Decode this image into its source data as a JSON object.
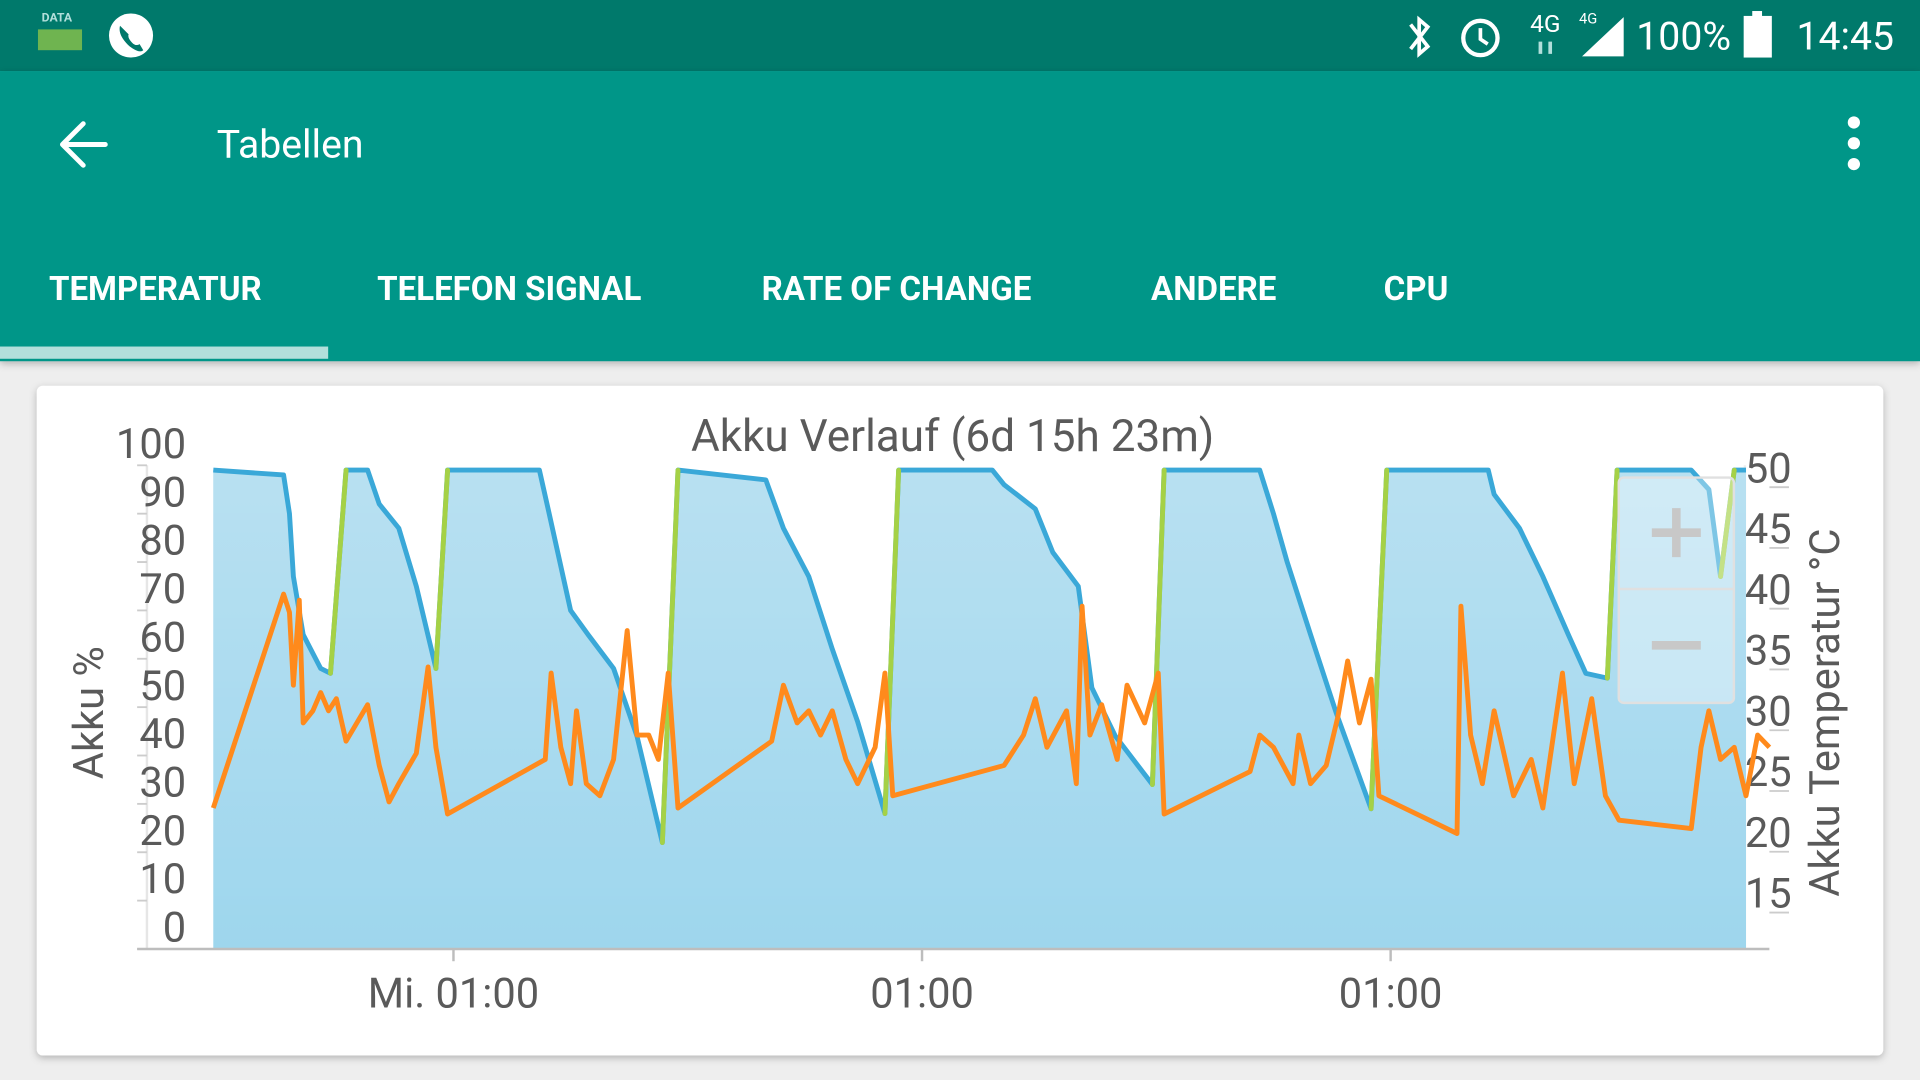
{
  "status_bar": {
    "data_label": "DATA",
    "network_1": "4G",
    "network_2": "4G",
    "battery": "100%",
    "time": "14:45"
  },
  "app_bar": {
    "title": "Tabellen"
  },
  "tabs": [
    "TEMPERATUR",
    "TELEFON SIGNAL",
    "RATE OF CHANGE",
    "ANDERE",
    "CPU"
  ],
  "selected_tab": 0,
  "chart_data": {
    "type": "line",
    "title": "Akku Verlauf (6d 15h 23m)",
    "y_label": "Akku %",
    "y2_label": "Akku Temperatur °C",
    "xlim": [
      -3.4,
      79.7
    ],
    "xticks": [
      {
        "value": 12.3,
        "label": "Mi. 01:00"
      },
      {
        "value": 36.3,
        "label": "01:00"
      },
      {
        "value": 60.3,
        "label": "01:00"
      }
    ],
    "ylim": [
      0,
      100
    ],
    "yticks": [
      0,
      10,
      20,
      30,
      40,
      50,
      60,
      70,
      80,
      90,
      100
    ],
    "y2lim": [
      12,
      51.8
    ],
    "y2ticks": [
      15,
      20,
      25,
      30,
      35,
      40,
      45,
      50
    ],
    "series": [
      {
        "color": "#3aa8d8",
        "rise_color": "#a5d146",
        "fill": "#bfe6f5",
        "x": [
          0,
          3.6,
          3.9,
          4.1,
          4.6,
          5.5,
          6.0,
          6.8,
          7.9,
          8.5,
          9.5,
          10.4,
          11.4,
          12.0,
          16.7,
          17.2,
          18.3,
          19.2,
          20.5,
          21.7,
          23.0,
          23.8,
          28.3,
          29.2,
          30.5,
          31.7,
          33.0,
          34.4,
          35.1,
          39.9,
          40.5,
          42.1,
          43.0,
          44.3,
          45.0,
          46.2,
          48.1,
          48.7,
          53.6,
          54.3,
          55.0,
          56.2,
          57.5,
          59.3,
          60.1,
          64.2,
          65.3,
          65.6,
          66.9,
          68.1,
          69.4,
          70.3,
          71.4,
          71.9,
          75.7,
          76.6,
          77.2,
          77.9,
          78.5
        ],
        "values": [
          99,
          98,
          90,
          77,
          65,
          58,
          57,
          99,
          99,
          92,
          87,
          75,
          58,
          99,
          99,
          90,
          70,
          65,
          58,
          44,
          22,
          99,
          97,
          87,
          77,
          62,
          47,
          28,
          99,
          99,
          96,
          91,
          82,
          75,
          54,
          44,
          34,
          99,
          99,
          90,
          80,
          65,
          49,
          29,
          99,
          99,
          99,
          94,
          87,
          77,
          65,
          57,
          56,
          99,
          99,
          95,
          77,
          99,
          99
        ]
      },
      {
        "color": "#ff8a1c",
        "axis": "y2",
        "x": [
          0,
          3.6,
          3.9,
          4.1,
          4.4,
          4.6,
          5.1,
          5.5,
          5.9,
          6.3,
          6.8,
          7.9,
          8.5,
          9.0,
          9.5,
          10.4,
          11.0,
          11.4,
          12.0,
          17.0,
          17.3,
          17.8,
          18.3,
          18.6,
          19.1,
          19.8,
          20.5,
          21.2,
          21.7,
          22.3,
          22.8,
          23.3,
          23.8,
          28.6,
          29.2,
          29.9,
          30.5,
          31.1,
          31.7,
          32.4,
          33.0,
          33.9,
          34.4,
          34.8,
          40.5,
          41.5,
          42.1,
          42.7,
          43.7,
          44.2,
          44.5,
          44.9,
          45.5,
          46.3,
          46.8,
          47.7,
          48.4,
          48.7,
          53.1,
          53.6,
          54.3,
          55.3,
          55.6,
          56.2,
          57.0,
          57.6,
          58.1,
          58.7,
          59.3,
          59.7,
          63.7,
          63.9,
          64.4,
          65.0,
          65.6,
          66.6,
          67.5,
          68.1,
          69.1,
          69.7,
          70.6,
          71.3,
          72.0,
          75.7,
          76.2,
          76.6,
          77.2,
          77.9,
          78.5,
          79.1,
          79.7
        ],
        "values": [
          23.6,
          41.2,
          39.7,
          33.7,
          40.7,
          30.6,
          31.6,
          33.1,
          31.6,
          32.6,
          29.1,
          32.1,
          27.1,
          24.1,
          25.6,
          28.1,
          35.2,
          28.6,
          23.1,
          27.6,
          34.7,
          28.6,
          25.6,
          31.6,
          25.6,
          24.6,
          27.6,
          38.2,
          29.6,
          29.6,
          27.6,
          34.7,
          23.6,
          29.1,
          33.7,
          30.6,
          31.6,
          29.6,
          31.6,
          27.6,
          25.6,
          28.6,
          34.7,
          24.6,
          27.1,
          29.6,
          32.6,
          28.6,
          31.6,
          25.6,
          40.2,
          29.6,
          32.1,
          27.6,
          33.7,
          30.6,
          34.7,
          23.1,
          26.6,
          29.6,
          28.6,
          25.6,
          29.6,
          25.6,
          27.1,
          31.1,
          35.7,
          30.6,
          34.2,
          24.6,
          21.5,
          40.2,
          29.6,
          25.6,
          31.6,
          24.6,
          27.6,
          23.6,
          34.7,
          25.6,
          32.6,
          24.6,
          22.6,
          21.9,
          28.6,
          31.6,
          27.6,
          28.6,
          24.6,
          29.6,
          28.6
        ]
      }
    ]
  }
}
